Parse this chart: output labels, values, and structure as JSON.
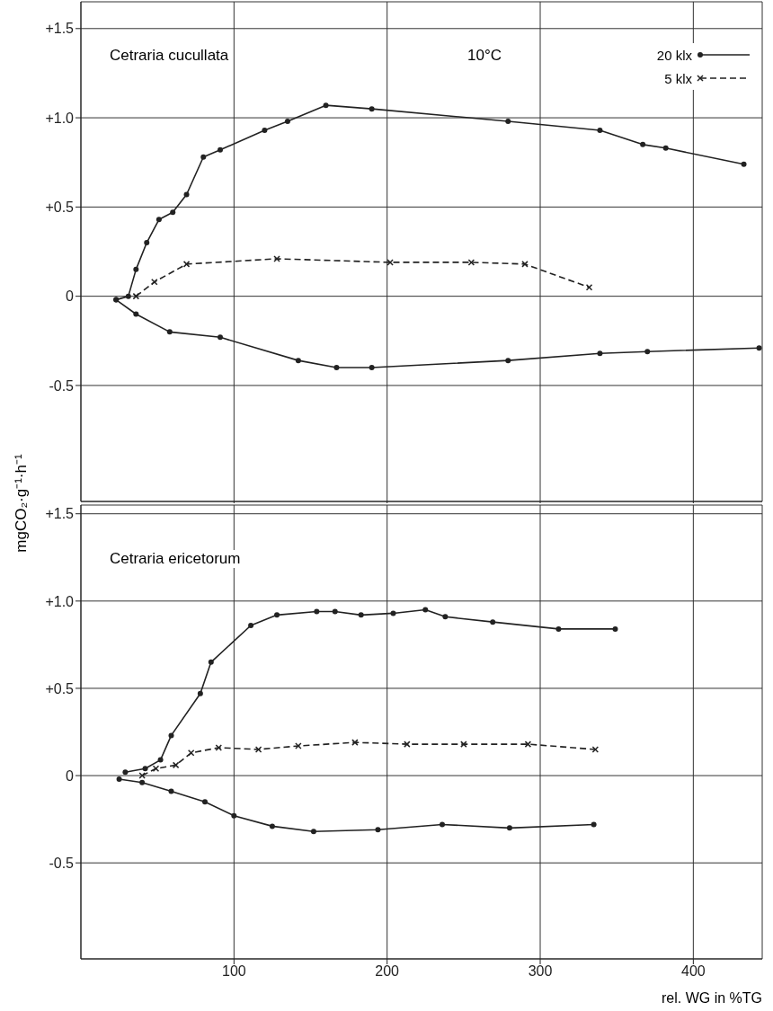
{
  "chart_data": [
    {
      "type": "line",
      "title": "Cetraria cucullata",
      "annotations": [
        "10°C"
      ],
      "ylabel": "mgCO₂·g⁻¹·h⁻¹",
      "xlim": [
        0,
        445
      ],
      "xticks": [
        100,
        200,
        300,
        400
      ],
      "ylim": [
        -1.15,
        1.65
      ],
      "yticks": [
        {
          "value": 1.5,
          "label": "+1.5"
        },
        {
          "value": 1.0,
          "label": "+1.0"
        },
        {
          "value": 0.5,
          "label": "+0.5"
        },
        0,
        {
          "value": -0.5,
          "label": "-0.5"
        }
      ],
      "grid": true,
      "tick_labels": "y",
      "legend": "top right",
      "series": [
        {
          "name": "20 klx",
          "color": "#222222",
          "marker": "circle",
          "line_style": "solid",
          "x": [
            23,
            31,
            36,
            43,
            51,
            60,
            69,
            80,
            91,
            120,
            135,
            160,
            190,
            279,
            339,
            367,
            382,
            433
          ],
          "values": [
            -0.02,
            0,
            0.15,
            0.3,
            0.43,
            0.47,
            0.57,
            0.78,
            0.82,
            0.93,
            0.98,
            1.07,
            1.05,
            0.98,
            0.93,
            0.85,
            0.83,
            0.74
          ]
        },
        {
          "name": "5 klx",
          "color": "#222222",
          "marker": "cross",
          "line_style": "dashed",
          "x": [
            36,
            48,
            69,
            128,
            202,
            255,
            290,
            332
          ],
          "values": [
            0.0,
            0.08,
            0.18,
            0.21,
            0.19,
            0.19,
            0.18,
            0.05
          ]
        },
        {
          "color": "#222222",
          "marker": "circle",
          "line_style": "solid",
          "x": [
            23,
            36,
            58,
            91,
            142,
            167,
            190,
            279,
            339,
            370,
            443
          ],
          "values": [
            -0.02,
            -0.1,
            -0.2,
            -0.23,
            -0.36,
            -0.4,
            -0.4,
            -0.36,
            -0.32,
            -0.31,
            -0.29
          ]
        }
      ]
    },
    {
      "type": "line",
      "title": "Cetraria ericetorum",
      "xlabel": "rel. WG in %TG",
      "xlim": [
        0,
        445
      ],
      "xticks": [
        100,
        200,
        300,
        400
      ],
      "ylim": [
        -1.05,
        1.55
      ],
      "yticks": [
        {
          "value": 1.5,
          "label": "+1.5"
        },
        {
          "value": 1.0,
          "label": "+1.0"
        },
        {
          "value": 0.5,
          "label": "+0.5"
        },
        0,
        {
          "value": -0.5,
          "label": "-0.5"
        }
      ],
      "grid": true,
      "series": [
        {
          "color": "#222222",
          "marker": "circle",
          "line_style": "solid",
          "x": [
            29,
            42,
            52,
            59,
            78,
            85,
            111,
            128,
            154,
            166,
            183,
            204,
            225,
            238,
            269,
            312,
            349
          ],
          "values": [
            0.02,
            0.04,
            0.09,
            0.23,
            0.47,
            0.65,
            0.86,
            0.92,
            0.94,
            0.94,
            0.92,
            0.93,
            0.95,
            0.91,
            0.88,
            0.84,
            0.84
          ]
        },
        {
          "color": "#222222",
          "marker": "cross",
          "line_style": "dashed",
          "x": [
            40,
            49,
            62,
            72,
            90,
            116,
            142,
            179,
            213,
            250,
            292,
            336
          ],
          "values": [
            0.0,
            0.04,
            0.06,
            0.13,
            0.16,
            0.15,
            0.17,
            0.19,
            0.18,
            0.18,
            0.18,
            0.15
          ]
        },
        {
          "color": "#222222",
          "marker": "circle",
          "line_style": "solid",
          "x": [
            25,
            40,
            59,
            81,
            100,
            125,
            152,
            194,
            236,
            280,
            335
          ],
          "values": [
            -0.02,
            -0.04,
            -0.09,
            -0.15,
            -0.23,
            -0.29,
            -0.32,
            -0.31,
            -0.28,
            -0.3,
            -0.28
          ]
        }
      ]
    }
  ]
}
